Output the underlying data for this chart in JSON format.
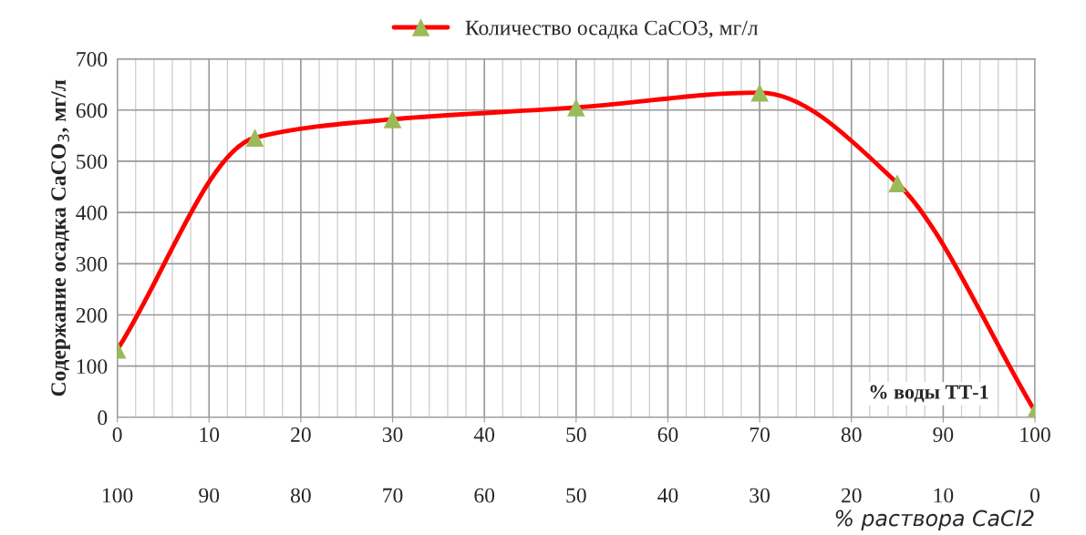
{
  "chart_data": {
    "type": "line",
    "x": [
      0,
      15,
      30,
      50,
      70,
      85,
      100
    ],
    "series": [
      {
        "name": "Количество осадка CaCO3, мг/л",
        "color": "#ff0000",
        "colors": [
          "#9bbb59",
          "#9bbb59",
          "#9bbb59",
          "#9bbb59",
          "#9bbb59",
          "#9bbb59",
          "#9bbb59"
        ],
        "values": [
          132,
          546,
          582,
          605,
          634,
          457,
          12
        ]
      }
    ],
    "ylabel": "Содержание осадка CaCO$_{3}$, мг/л",
    "xlabel": "% воды ТТ-1",
    "x2label": "% раствора CaCl2",
    "xlim": [
      0,
      100
    ],
    "xticks": [
      0,
      10,
      20,
      30,
      40,
      50,
      60,
      70,
      80,
      90,
      100
    ],
    "x2lim": [
      100,
      0
    ],
    "x2ticks": [
      100,
      90,
      80,
      70,
      60,
      50,
      40,
      30,
      20,
      10,
      0
    ],
    "ylim": [
      0,
      700
    ],
    "yticks": [
      0,
      100,
      200,
      300,
      400,
      500,
      600,
      700
    ],
    "grid": true,
    "legend": "top",
    "marker": "triangle",
    "line_style": "solid"
  }
}
